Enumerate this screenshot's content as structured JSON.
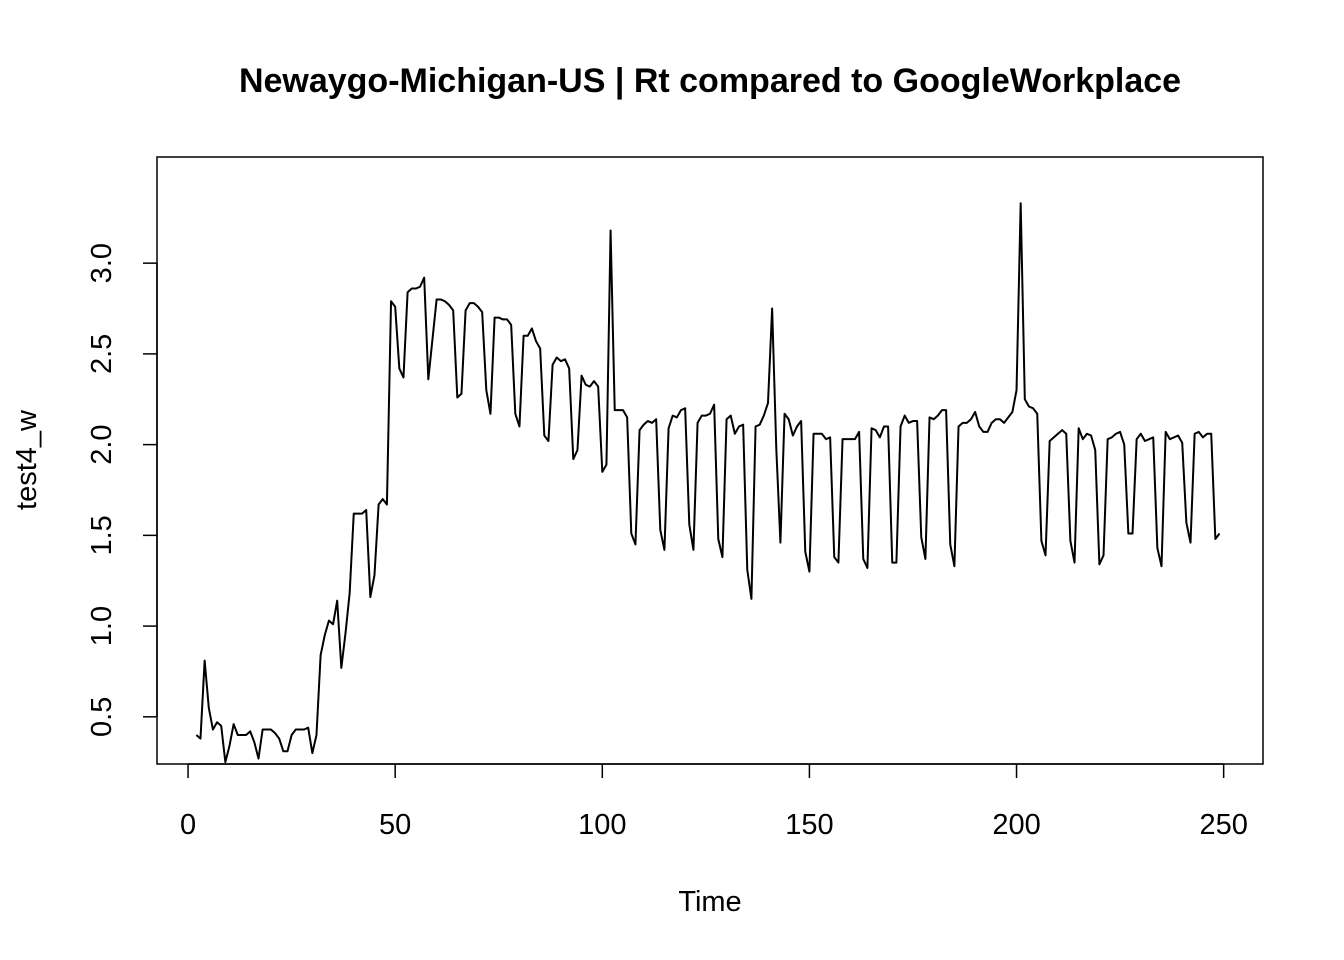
{
  "chart_data": {
    "type": "line",
    "title": "Newaygo-Michigan-US | Rt compared to GoogleWorkplace",
    "xlabel": "Time",
    "ylabel": "test4_w",
    "xlim": [
      -7.5,
      259.5
    ],
    "ylim": [
      0.24,
      3.585
    ],
    "xticks": [
      0,
      50,
      100,
      150,
      200,
      250
    ],
    "yticks": [
      0.5,
      1.0,
      1.5,
      2.0,
      2.5,
      3.0
    ],
    "xtick_labels": [
      "0",
      "50",
      "100",
      "150",
      "200",
      "250"
    ],
    "ytick_labels": [
      "0.5",
      "1.0",
      "1.5",
      "2.0",
      "2.5",
      "3.0"
    ],
    "grid": false,
    "legend": "none",
    "series": [
      {
        "color": "#000000",
        "x_start": 2,
        "values": [
          0.4,
          0.38,
          0.81,
          0.55,
          0.43,
          0.47,
          0.45,
          0.25,
          0.34,
          0.46,
          0.4,
          0.4,
          0.4,
          0.42,
          0.36,
          0.27,
          0.43,
          0.43,
          0.43,
          0.41,
          0.38,
          0.31,
          0.31,
          0.4,
          0.43,
          0.43,
          0.43,
          0.44,
          0.3,
          0.4,
          0.84,
          0.95,
          1.03,
          1.01,
          1.14,
          0.77,
          0.96,
          1.18,
          1.62,
          1.62,
          1.62,
          1.64,
          1.16,
          1.28,
          1.67,
          1.7,
          1.67,
          2.79,
          2.76,
          2.42,
          2.37,
          2.84,
          2.86,
          2.86,
          2.87,
          2.92,
          2.36,
          2.58,
          2.8,
          2.8,
          2.79,
          2.77,
          2.74,
          2.26,
          2.28,
          2.74,
          2.78,
          2.78,
          2.76,
          2.73,
          2.3,
          2.17,
          2.7,
          2.7,
          2.69,
          2.69,
          2.66,
          2.17,
          2.1,
          2.6,
          2.6,
          2.64,
          2.57,
          2.53,
          2.05,
          2.02,
          2.44,
          2.48,
          2.46,
          2.47,
          2.42,
          1.92,
          1.97,
          2.38,
          2.33,
          2.32,
          2.35,
          2.32,
          1.85,
          1.89,
          3.18,
          2.19,
          2.19,
          2.19,
          2.15,
          1.51,
          1.45,
          2.08,
          2.11,
          2.13,
          2.12,
          2.14,
          1.53,
          1.42,
          2.09,
          2.16,
          2.15,
          2.19,
          2.2,
          1.56,
          1.42,
          2.12,
          2.16,
          2.16,
          2.17,
          2.22,
          1.48,
          1.38,
          2.14,
          2.16,
          2.06,
          2.1,
          2.11,
          1.31,
          1.15,
          2.1,
          2.11,
          2.16,
          2.23,
          2.75,
          1.98,
          1.46,
          2.17,
          2.14,
          2.05,
          2.1,
          2.13,
          1.41,
          1.3,
          2.06,
          2.06,
          2.06,
          2.03,
          2.04,
          1.38,
          1.35,
          2.03,
          2.03,
          2.03,
          2.03,
          2.07,
          1.37,
          1.32,
          2.09,
          2.08,
          2.04,
          2.1,
          2.1,
          1.35,
          1.35,
          2.1,
          2.16,
          2.12,
          2.13,
          2.13,
          1.49,
          1.37,
          2.15,
          2.14,
          2.16,
          2.19,
          2.19,
          1.45,
          1.33,
          2.1,
          2.12,
          2.12,
          2.14,
          2.18,
          2.1,
          2.07,
          2.07,
          2.12,
          2.14,
          2.14,
          2.12,
          2.15,
          2.18,
          2.3,
          3.33,
          2.25,
          2.21,
          2.2,
          2.17,
          1.47,
          1.39,
          2.02,
          2.04,
          2.06,
          2.08,
          2.06,
          1.47,
          1.35,
          2.09,
          2.03,
          2.06,
          2.05,
          1.97,
          1.34,
          1.39,
          2.03,
          2.04,
          2.06,
          2.07,
          2.0,
          1.51,
          1.51,
          2.03,
          2.06,
          2.02,
          2.03,
          2.04,
          1.43,
          1.33,
          2.07,
          2.03,
          2.04,
          2.05,
          2.01,
          1.57,
          1.46,
          2.06,
          2.07,
          2.04,
          2.06,
          2.06,
          1.48,
          1.51
        ]
      }
    ]
  }
}
